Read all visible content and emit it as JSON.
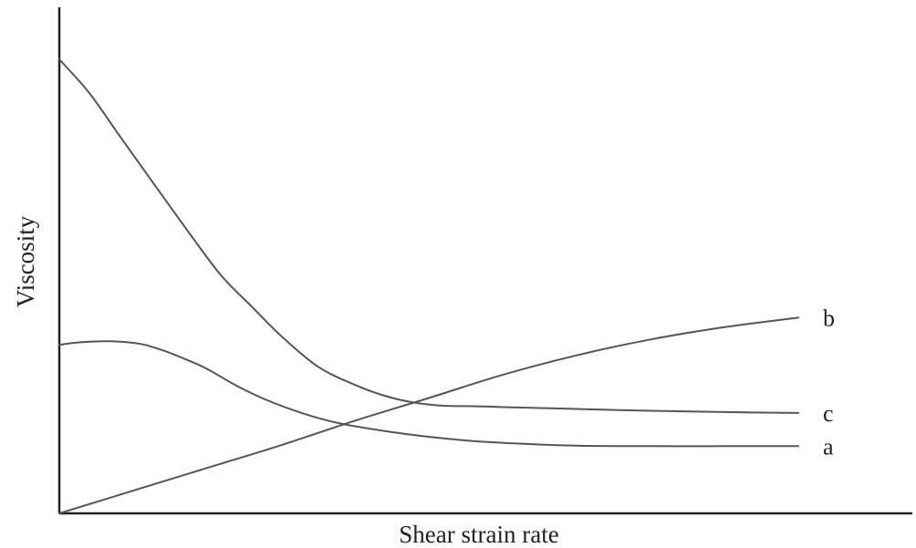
{
  "chart_data": {
    "type": "line",
    "title": "",
    "xlabel": "Shear strain rate",
    "ylabel": "Viscosity",
    "xlim": [
      0,
      100
    ],
    "ylim": [
      0,
      100
    ],
    "grid": false,
    "legend": "none",
    "line_color": "#555555",
    "series": [
      {
        "name": "a",
        "x": [
          0,
          3,
          7,
          11,
          14,
          17,
          20,
          24,
          28,
          33,
          38,
          45,
          52,
          58,
          63,
          70,
          80,
          90,
          100
        ],
        "y": [
          37.1,
          37.7,
          37.9,
          37.3,
          35.9,
          34,
          31.8,
          28.1,
          25,
          22,
          19.8,
          17.9,
          16.5,
          15.7,
          15.3,
          14.9,
          14.8,
          14.8,
          14.8
        ]
      },
      {
        "name": "b",
        "x": [
          0,
          10,
          20,
          30,
          40,
          50,
          60,
          70,
          80,
          90,
          100
        ],
        "y": [
          0,
          5,
          10,
          15,
          20.4,
          25.4,
          30.5,
          34.8,
          38.3,
          41,
          43.1
        ]
      },
      {
        "name": "c",
        "x": [
          0,
          4,
          8,
          13,
          18,
          22,
          26,
          30,
          35,
          40,
          44,
          48,
          52,
          56,
          60,
          65,
          70,
          80,
          90,
          100
        ],
        "y": [
          100,
          92.7,
          83.5,
          72.1,
          60.8,
          52.2,
          45.6,
          39.1,
          32.3,
          28.3,
          25.9,
          24.4,
          23.7,
          23.6,
          23.4,
          23.2,
          23,
          22.6,
          22.3,
          22.1
        ]
      }
    ]
  }
}
